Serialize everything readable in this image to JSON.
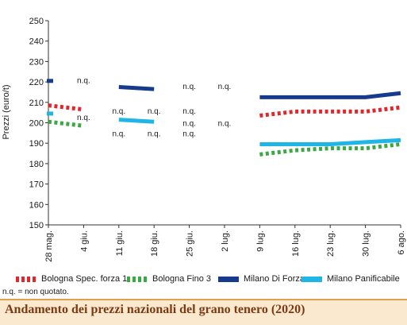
{
  "chart_data": {
    "type": "line",
    "title": "Andamento dei prezzi nazionali del grano tenero (2020)",
    "ylabel": "Prezzi (euro/t)",
    "ylim": [
      150,
      250
    ],
    "yticks": [
      150,
      160,
      170,
      180,
      190,
      200,
      210,
      220,
      230,
      240,
      250
    ],
    "grid": false,
    "legend_position": "bottom",
    "categories": [
      "28 mag.",
      "4 giu.",
      "11 giu.",
      "18 giu.",
      "25 giu.",
      "2 lug.",
      "9 lug.",
      "16 lug.",
      "23 lug.",
      "30 lug.",
      "6 ago."
    ],
    "series": [
      {
        "name": "Bologna Spec. forza 1",
        "color": "#e3262c",
        "style": "dotted",
        "values": [
          208.5,
          206.5,
          null,
          null,
          null,
          null,
          203.5,
          205.5,
          205.5,
          205.5,
          207.5
        ]
      },
      {
        "name": "Bologna Fino 3",
        "color": "#3aa843",
        "style": "dotted",
        "values": [
          200.5,
          198.5,
          null,
          null,
          null,
          null,
          184.5,
          186.5,
          187.5,
          187.5,
          189.5
        ]
      },
      {
        "name": "Milano Di Forza",
        "color": "#173b8c",
        "style": "solid",
        "values": [
          220.5,
          null,
          217.5,
          216.5,
          null,
          null,
          212.5,
          212.5,
          212.5,
          212.5,
          214.5
        ]
      },
      {
        "name": "Milano Panificabile",
        "color": "#1fb5e4",
        "style": "solid",
        "values": [
          204.5,
          null,
          201.5,
          200.5,
          null,
          null,
          189.5,
          189.5,
          189.5,
          190.5,
          191.5
        ]
      }
    ],
    "annotations": [
      {
        "text": "n.q.",
        "x": "4 giu.",
        "y": 221
      },
      {
        "text": "n.q.",
        "x": "4 giu.",
        "y": 203
      },
      {
        "text": "n.q.",
        "x": "11 giu.",
        "y": 206
      },
      {
        "text": "n.q.",
        "x": "11 giu.",
        "y": 195
      },
      {
        "text": "n.q.",
        "x": "18 giu.",
        "y": 206
      },
      {
        "text": "n.q.",
        "x": "18 giu.",
        "y": 195
      },
      {
        "text": "n.q.",
        "x": "25 giu.",
        "y": 218
      },
      {
        "text": "n.q.",
        "x": "25 giu.",
        "y": 206
      },
      {
        "text": "n.q.",
        "x": "25 giu.",
        "y": 200
      },
      {
        "text": "n.q.",
        "x": "25 giu.",
        "y": 195
      },
      {
        "text": "n.q.",
        "x": "2 lug.",
        "y": 218
      },
      {
        "text": "n.q.",
        "x": "2 lug.",
        "y": 200
      }
    ]
  },
  "note": "n.q. = non quotato.",
  "footer_title": "Andamento dei prezzi nazionali del grano tenero (2020)"
}
